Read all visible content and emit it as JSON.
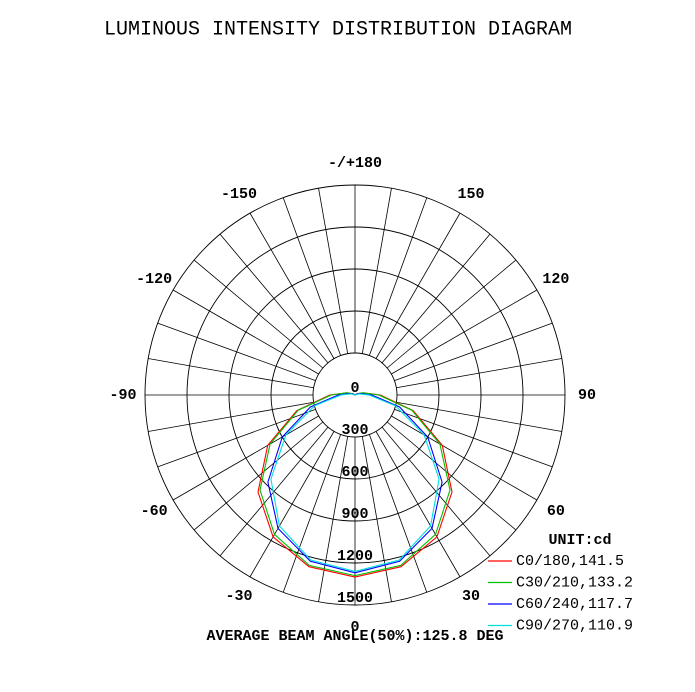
{
  "chart_data": {
    "type": "polar",
    "title": "LUMINOUS INTENSITY DISTRIBUTION DIAGRAM",
    "unit_label": "UNIT:cd",
    "footer": "AVERAGE BEAM ANGLE(50%):125.8 DEG",
    "x": [
      -180,
      -165,
      -150,
      -135,
      -120,
      -105,
      -90,
      -75,
      -60,
      -45,
      -30,
      -15,
      0,
      15,
      30,
      45,
      60,
      75,
      90,
      105,
      120,
      135,
      150,
      165,
      180
    ],
    "series": [
      {
        "name": "C0/180,141.5",
        "color": "#ff0000",
        "values": [
          0,
          0,
          0,
          0,
          20,
          60,
          180,
          430,
          720,
          980,
          1170,
          1270,
          1300,
          1270,
          1170,
          980,
          720,
          430,
          180,
          60,
          20,
          0,
          0,
          0,
          0
        ]
      },
      {
        "name": "C30/210,133.2",
        "color": "#00c000",
        "values": [
          0,
          0,
          0,
          0,
          20,
          60,
          170,
          420,
          700,
          960,
          1150,
          1260,
          1290,
          1260,
          1150,
          960,
          700,
          420,
          170,
          60,
          20,
          0,
          0,
          0,
          0
        ]
      },
      {
        "name": "C60/240,117.7",
        "color": "#0000ff",
        "values": [
          0,
          0,
          0,
          0,
          10,
          40,
          120,
          330,
          600,
          880,
          1100,
          1230,
          1270,
          1230,
          1100,
          880,
          600,
          330,
          120,
          40,
          10,
          0,
          0,
          0,
          0
        ]
      },
      {
        "name": "C90/270,110.9",
        "color": "#00e0e0",
        "values": [
          0,
          0,
          0,
          0,
          0,
          30,
          100,
          300,
          570,
          850,
          1080,
          1220,
          1260,
          1220,
          1080,
          850,
          570,
          300,
          100,
          30,
          0,
          0,
          0,
          0,
          0
        ]
      }
    ],
    "xticks": [
      {
        "value": 180,
        "label": "-/+180"
      },
      -150,
      150,
      -120,
      120,
      -90,
      90,
      -60,
      60,
      -30,
      30,
      0
    ],
    "ylim": [
      0,
      1500
    ],
    "yticks": [
      0,
      300,
      600,
      900,
      1200,
      1500
    ]
  }
}
